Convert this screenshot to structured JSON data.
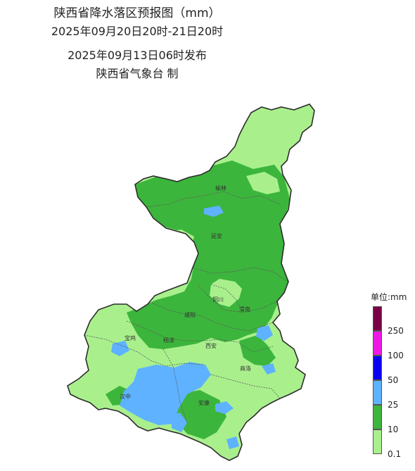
{
  "header": {
    "title": "陕西省降水落区预报图（mm）",
    "period": "2025年09月20日20时-21日20时",
    "issued": "2025年09月13日06时发布",
    "producer": "陕西省气象台 制"
  },
  "legend": {
    "title": "单位:mm",
    "bins": [
      {
        "label": "250",
        "color": "#7a0046"
      },
      {
        "label": "100",
        "color": "#ee18e4"
      },
      {
        "label": "50",
        "color": "#0a00f0"
      },
      {
        "label": "25",
        "color": "#5eb2ff"
      },
      {
        "label": "10",
        "color": "#3cb53c"
      },
      {
        "label": "0.1",
        "color": "#a9f08d"
      }
    ]
  },
  "cities": [
    {
      "id": "yulin",
      "label": "榆林"
    },
    {
      "id": "yanan",
      "label": "延安"
    },
    {
      "id": "tongchuan",
      "label": "铜川"
    },
    {
      "id": "weinan",
      "label": "渭南"
    },
    {
      "id": "xianyang",
      "label": "咸阳"
    },
    {
      "id": "baoji",
      "label": "宝鸡"
    },
    {
      "id": "yangling",
      "label": "杨凌"
    },
    {
      "id": "xian",
      "label": "西安"
    },
    {
      "id": "shangluo",
      "label": "商洛"
    },
    {
      "id": "hanzhong",
      "label": "汉中"
    },
    {
      "id": "ankang",
      "label": "安康"
    }
  ]
}
